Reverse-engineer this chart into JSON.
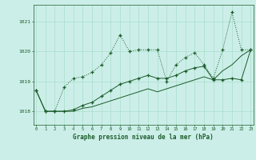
{
  "title": "Graphe pression niveau de la mer (hPa)",
  "bg_color": "#cceee8",
  "line_color": "#1a5c2a",
  "grid_color": "#aaddcc",
  "ylabel_ticks": [
    1018,
    1019,
    1020,
    1021
  ],
  "xlim": [
    -0.3,
    23.3
  ],
  "ylim": [
    1017.55,
    1021.55
  ],
  "series1": [
    [
      0,
      1018.7
    ],
    [
      1,
      1018.0
    ],
    [
      2,
      1018.0
    ],
    [
      3,
      1018.8
    ],
    [
      4,
      1019.1
    ],
    [
      5,
      1019.15
    ],
    [
      6,
      1019.3
    ],
    [
      7,
      1019.55
    ],
    [
      8,
      1019.95
    ],
    [
      9,
      1020.55
    ],
    [
      10,
      1020.0
    ],
    [
      11,
      1020.05
    ],
    [
      12,
      1020.05
    ],
    [
      13,
      1020.05
    ],
    [
      14,
      1019.0
    ],
    [
      15,
      1019.55
    ],
    [
      16,
      1019.8
    ],
    [
      17,
      1019.95
    ],
    [
      18,
      1019.55
    ],
    [
      19,
      1019.1
    ],
    [
      20,
      1020.05
    ],
    [
      21,
      1021.3
    ],
    [
      22,
      1020.05
    ],
    [
      23,
      1020.05
    ]
  ],
  "series2": [
    [
      0,
      1018.7
    ],
    [
      1,
      1018.0
    ],
    [
      2,
      1018.0
    ],
    [
      3,
      1018.0
    ],
    [
      4,
      1018.05
    ],
    [
      5,
      1018.2
    ],
    [
      6,
      1018.3
    ],
    [
      7,
      1018.5
    ],
    [
      8,
      1018.7
    ],
    [
      9,
      1018.9
    ],
    [
      10,
      1019.0
    ],
    [
      11,
      1019.1
    ],
    [
      12,
      1019.2
    ],
    [
      13,
      1019.1
    ],
    [
      14,
      1019.1
    ],
    [
      15,
      1019.2
    ],
    [
      16,
      1019.35
    ],
    [
      17,
      1019.45
    ],
    [
      18,
      1019.5
    ],
    [
      19,
      1019.05
    ],
    [
      20,
      1019.05
    ],
    [
      21,
      1019.1
    ],
    [
      22,
      1019.05
    ],
    [
      23,
      1020.05
    ]
  ],
  "series3": [
    [
      0,
      1018.7
    ],
    [
      1,
      1018.0
    ],
    [
      2,
      1018.0
    ],
    [
      3,
      1018.0
    ],
    [
      4,
      1018.0
    ],
    [
      5,
      1018.1
    ],
    [
      6,
      1018.15
    ],
    [
      7,
      1018.25
    ],
    [
      8,
      1018.35
    ],
    [
      9,
      1018.45
    ],
    [
      10,
      1018.55
    ],
    [
      11,
      1018.65
    ],
    [
      12,
      1018.75
    ],
    [
      13,
      1018.65
    ],
    [
      14,
      1018.75
    ],
    [
      15,
      1018.85
    ],
    [
      16,
      1018.95
    ],
    [
      17,
      1019.05
    ],
    [
      18,
      1019.15
    ],
    [
      19,
      1019.05
    ],
    [
      20,
      1019.35
    ],
    [
      21,
      1019.55
    ],
    [
      22,
      1019.85
    ],
    [
      23,
      1020.05
    ]
  ]
}
